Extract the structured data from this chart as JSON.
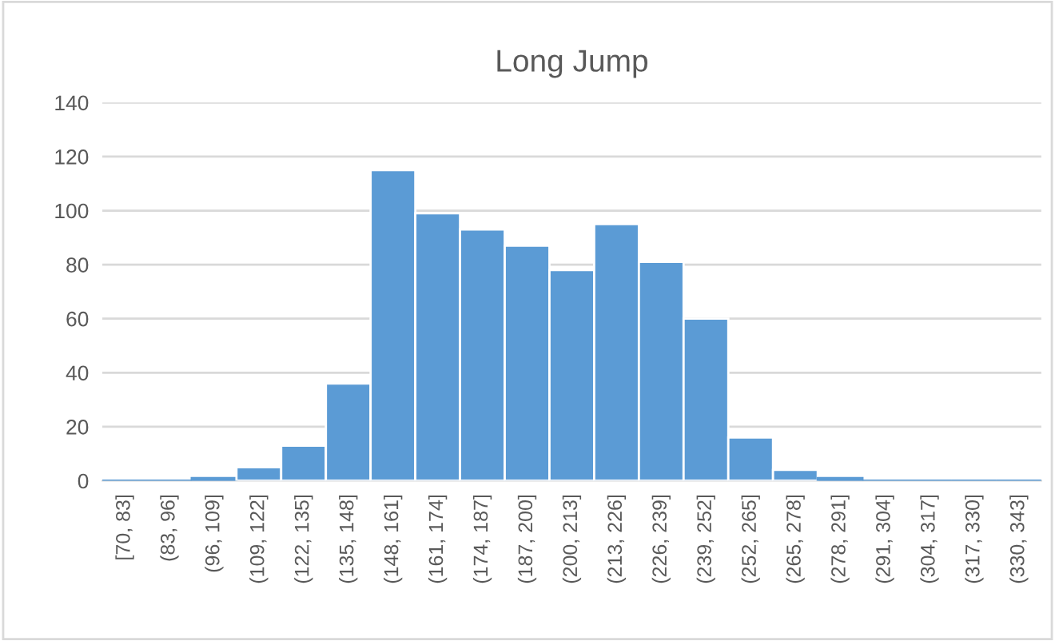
{
  "chart_data": {
    "type": "bar",
    "title": "Long Jump",
    "categories": [
      "[70, 83]",
      "(83, 96]",
      "(96, 109]",
      "(109, 122]",
      "(122, 135]",
      "(135, 148]",
      "(148, 161]",
      "(161, 174]",
      "(174, 187]",
      "(187, 200]",
      "(200, 213]",
      "(213, 226]",
      "(226, 239]",
      "(239, 252]",
      "(252, 265]",
      "(265, 278]",
      "(278, 291]",
      "(291, 304]",
      "(304, 317]",
      "(317, 330]",
      "(330, 343]"
    ],
    "values": [
      0,
      0,
      1,
      5,
      13,
      36,
      115,
      99,
      93,
      87,
      78,
      95,
      81,
      60,
      16,
      4,
      1,
      0,
      0,
      0,
      0
    ],
    "color": "#5b9bd5",
    "ylim": [
      0,
      140
    ],
    "yticks": [
      0,
      20,
      40,
      60,
      80,
      100,
      120,
      140
    ],
    "grid": "y"
  }
}
